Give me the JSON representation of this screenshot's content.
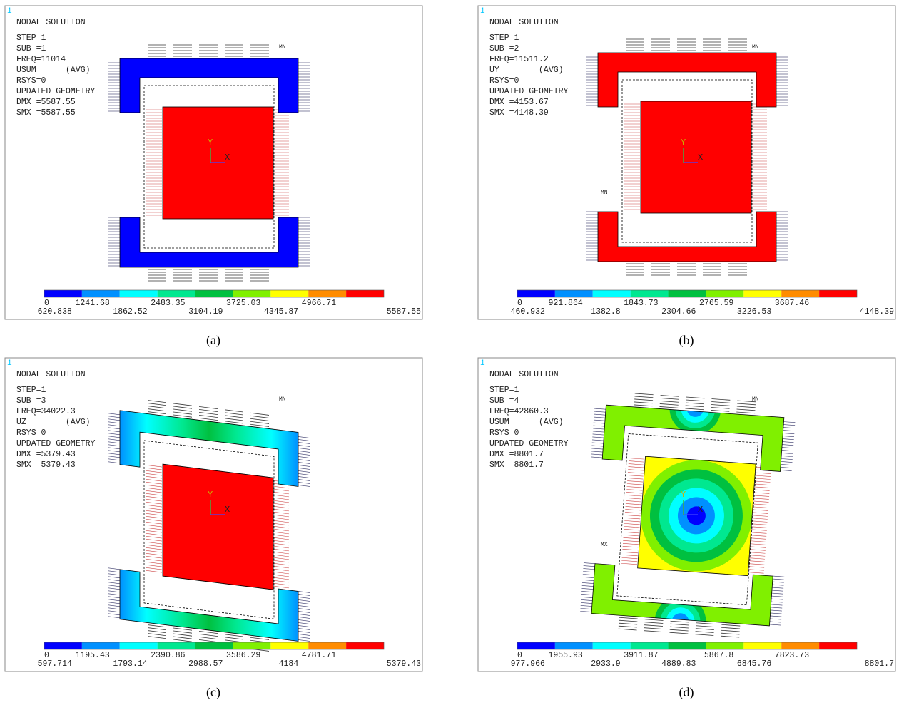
{
  "panels": [
    {
      "index": "1",
      "title": "NODAL SOLUTION",
      "info": [
        "STEP=1",
        "SUB =1",
        "FREQ=11014",
        "USUM      (AVG)",
        "RSYS=0",
        "UPDATED GEOMETRY",
        "DMX =5587.55",
        "SMX =5587.55"
      ],
      "colorbar_top": [
        "0",
        "1241.68",
        "2483.35",
        "3725.03",
        "4966.71"
      ],
      "colorbar_bottom": [
        "620.838",
        "1862.52",
        "3104.19",
        "4345.87",
        "5587.55"
      ],
      "markers": [
        "MN"
      ],
      "axes": [
        "Y",
        "X"
      ],
      "caption": "(a)"
    },
    {
      "index": "1",
      "title": "NODAL SOLUTION",
      "info": [
        "STEP=1",
        "SUB =2",
        "FREQ=11511.2",
        "UY        (AVG)",
        "RSYS=0",
        "UPDATED GEOMETRY",
        "DMX =4153.67",
        "SMX =4148.39"
      ],
      "colorbar_top": [
        "0",
        "921.864",
        "1843.73",
        "2765.59",
        "3687.46"
      ],
      "colorbar_bottom": [
        "460.932",
        "1382.8",
        "2304.66",
        "3226.53",
        "4148.39"
      ],
      "markers": [
        "MN",
        "MN"
      ],
      "axes": [
        "Y",
        "X"
      ],
      "caption": "(b)"
    },
    {
      "index": "1",
      "title": "NODAL SOLUTION",
      "info": [
        "STEP=1",
        "SUB =3",
        "FREQ=34022.3",
        "UZ        (AVG)",
        "RSYS=0",
        "UPDATED GEOMETRY",
        "DMX =5379.43",
        "SMX =5379.43"
      ],
      "colorbar_top": [
        "0",
        "1195.43",
        "2390.86",
        "3586.29",
        "4781.71"
      ],
      "colorbar_bottom": [
        "597.714",
        "1793.14",
        "2988.57",
        "4184",
        "5379.43"
      ],
      "markers": [
        "MN"
      ],
      "axes": [
        "Y",
        "X"
      ],
      "caption": "(c)"
    },
    {
      "index": "1",
      "title": "NODAL SOLUTION",
      "info": [
        "STEP=1",
        "SUB =4",
        "FREQ=42860.3",
        "USUM      (AVG)",
        "RSYS=0",
        "UPDATED GEOMETRY",
        "DMX =8801.7",
        "SMX =8801.7"
      ],
      "colorbar_top": [
        "0",
        "1955.93",
        "3911.87",
        "5867.8",
        "7823.73"
      ],
      "colorbar_bottom": [
        "977.966",
        "2933.9",
        "4889.83",
        "6845.76",
        "8801.7"
      ],
      "markers": [
        "MN",
        "MX"
      ],
      "axes": [
        "Y",
        "X"
      ],
      "caption": "(d)"
    }
  ]
}
